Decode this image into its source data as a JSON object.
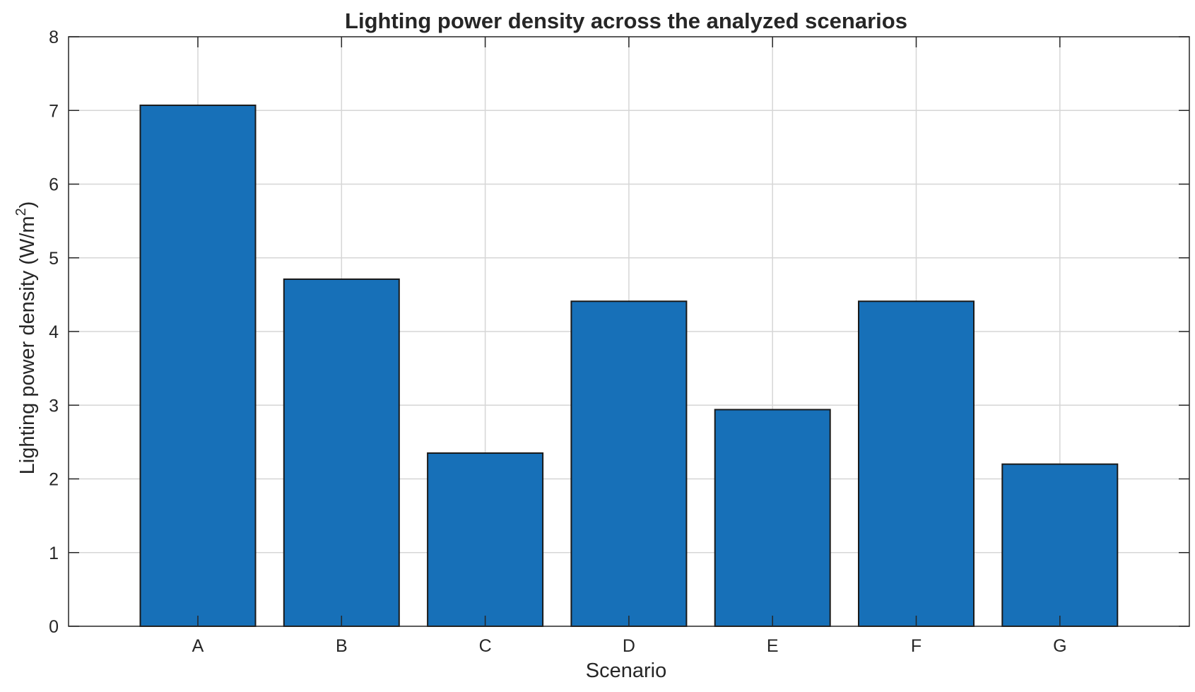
{
  "chart_data": {
    "type": "bar",
    "title": "Lighting power density across the analyzed scenarios",
    "xlabel": "Scenario",
    "ylabel": "Lighting power density (W/m",
    "ylabel_superscript": "2",
    "ylabel_suffix": ")",
    "categories": [
      "A",
      "B",
      "C",
      "D",
      "E",
      "F",
      "G"
    ],
    "values": [
      7.07,
      4.71,
      2.35,
      4.41,
      2.94,
      4.41,
      2.2
    ],
    "ylim": [
      0,
      8
    ],
    "yticks": [
      0,
      1,
      2,
      3,
      4,
      5,
      6,
      7,
      8
    ],
    "grid": true,
    "legend": "none",
    "bar_color": "#1770b8",
    "edge_color": "#1a1a1a"
  }
}
